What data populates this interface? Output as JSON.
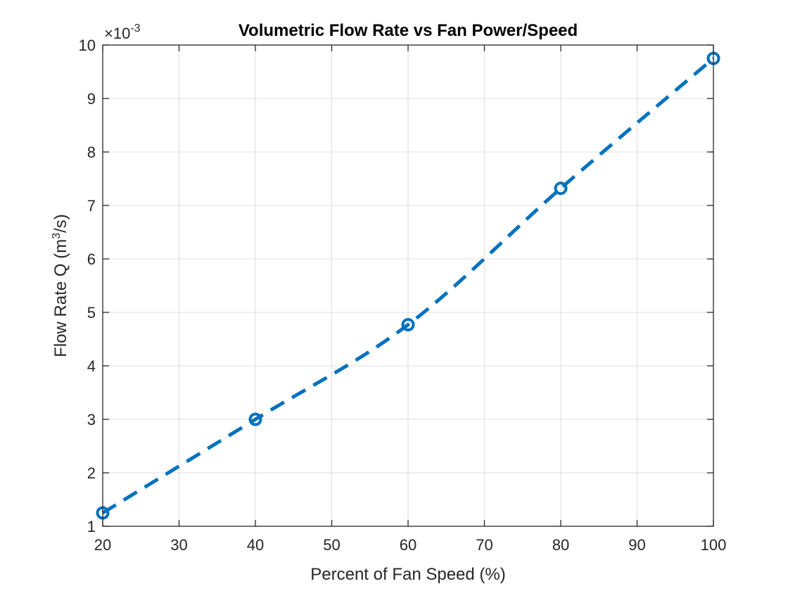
{
  "chart_data": {
    "type": "line",
    "title": "Volumetric Flow Rate vs Fan Power/Speed",
    "xlabel": "Percent of Fan Speed (%)",
    "ylabel": {
      "prefix": "Flow Rate Q (m",
      "superscript": "3",
      "suffix": "/s)"
    },
    "exponent": {
      "base": "×10",
      "power": "-3"
    },
    "xlim": [
      20,
      100
    ],
    "ylim": [
      1,
      10
    ],
    "xticks": [
      "20",
      "30",
      "40",
      "50",
      "60",
      "70",
      "80",
      "90",
      "100"
    ],
    "yticks": [
      "1",
      "2",
      "3",
      "4",
      "5",
      "6",
      "7",
      "8",
      "9",
      "10"
    ],
    "grid": true,
    "series": [
      {
        "x": [
          20,
          40,
          60,
          80,
          100
        ],
        "y": [
          1.25,
          3.0,
          4.77,
          7.32,
          9.75
        ],
        "line_style": "dashed",
        "marker": "circle",
        "color": "#0072BD"
      }
    ]
  }
}
